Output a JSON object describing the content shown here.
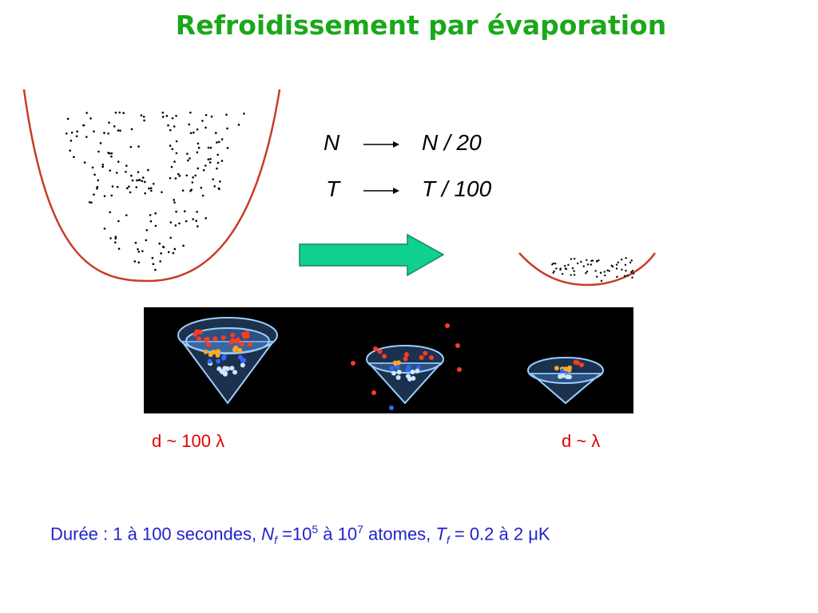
{
  "title": "Refroidissement par évaporation",
  "relations": [
    {
      "from": "N",
      "to": "N / 20"
    },
    {
      "from": "T",
      "to": "T / 100"
    }
  ],
  "captions": [
    "d ~ 100 λ",
    "d ~ λ"
  ],
  "footer": {
    "parts": [
      "Durée : 1 à 100 secondes, ",
      "N",
      "f",
      " =10",
      "5",
      " à 10",
      "7",
      " atomes, ",
      "T",
      "f",
      " = 0.2 à 2 ",
      "μ",
      "K"
    ]
  }
}
